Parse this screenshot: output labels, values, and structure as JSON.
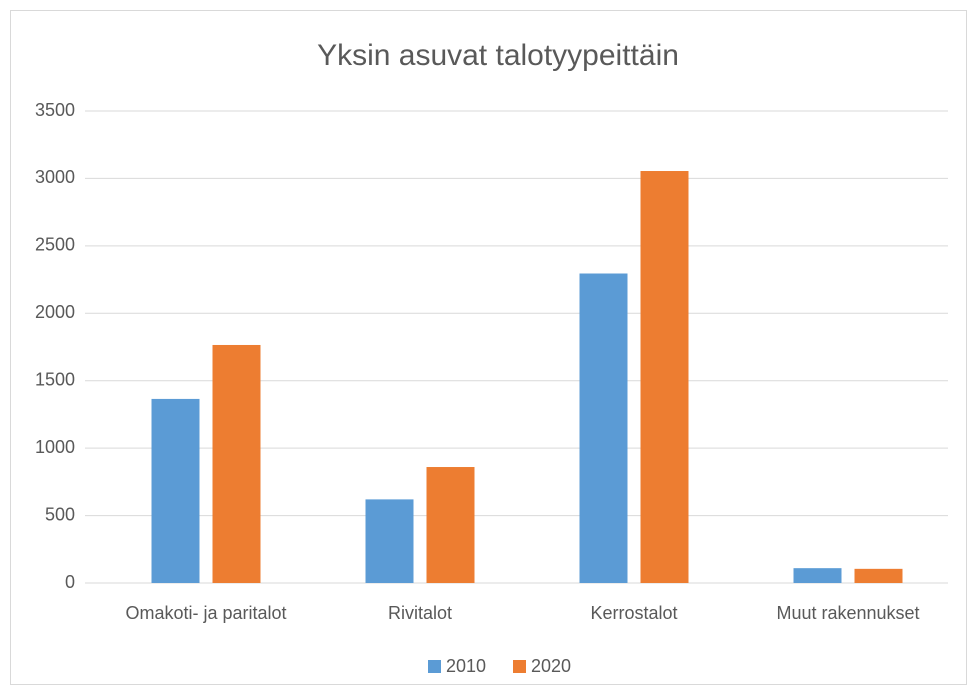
{
  "chart_data": {
    "type": "bar",
    "title": "Yksin asuvat talotyypeittäin",
    "categories": [
      "Omakoti- ja paritalot",
      "Rivitalot",
      "Kerrostalot",
      "Muut rakennukset"
    ],
    "series": [
      {
        "name": "2010",
        "color": "#5b9bd5",
        "values": [
          1365,
          620,
          2295,
          110
        ]
      },
      {
        "name": "2020",
        "color": "#ed7d31",
        "values": [
          1765,
          860,
          3055,
          105
        ]
      }
    ],
    "ylim": [
      0,
      3500
    ],
    "yticks": [
      0,
      500,
      1000,
      1500,
      2000,
      2500,
      3000,
      3500
    ],
    "grid": true,
    "legend": "bottom"
  }
}
